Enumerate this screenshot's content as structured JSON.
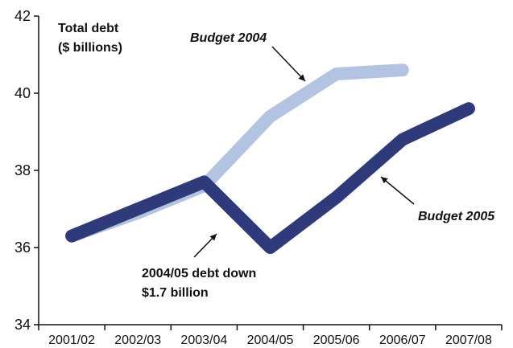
{
  "chart_data": {
    "type": "line",
    "categories": [
      "2001/02",
      "2002/03",
      "2003/04",
      "2004/05",
      "2005/06",
      "2006/07",
      "2007/08"
    ],
    "ylabel": [
      "Total debt",
      "($ billions)"
    ],
    "ylim": [
      34,
      42
    ],
    "yticks": [
      34,
      36,
      38,
      40,
      42
    ],
    "grid": false,
    "series": [
      {
        "name": "Budget 2004",
        "color": "#b3c3e2",
        "values": [
          36.3,
          36.9,
          37.6,
          39.4,
          40.5,
          40.6,
          null
        ]
      },
      {
        "name": "Budget 2005",
        "color": "#2f3a7a",
        "values": [
          36.3,
          37.0,
          37.7,
          36.0,
          37.3,
          38.8,
          39.6
        ]
      }
    ],
    "annotations": [
      {
        "text_lines": [
          "2004/05 debt down",
          "$1.7 billion"
        ]
      }
    ]
  }
}
